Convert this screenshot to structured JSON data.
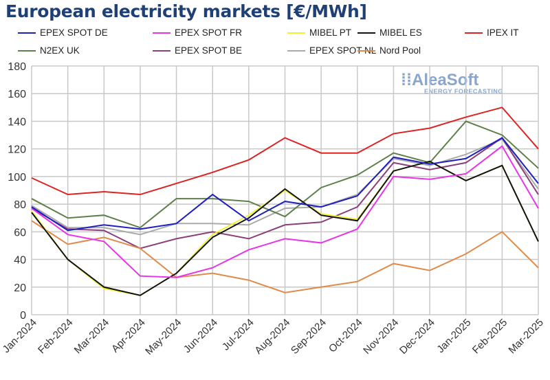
{
  "chart_data": {
    "type": "line",
    "title": "European electricity markets [€/MWh]",
    "categories": [
      "Jan-2024",
      "Feb-2024",
      "Mar-2024",
      "Apr-2024",
      "May-2024",
      "Jun-2024",
      "Jul-2024",
      "Aug-2024",
      "Sep-2024",
      "Oct-2024",
      "Nov-2024",
      "Dec-2024",
      "Jan-2025",
      "Feb-2025",
      "Mar-2025"
    ],
    "ylim": [
      0,
      180
    ],
    "yticks": [
      0,
      20,
      40,
      60,
      80,
      100,
      120,
      140,
      160,
      180
    ],
    "grid": true,
    "legend_position": "top",
    "series": [
      {
        "name": "EPEX SPOT DE",
        "color": "#1f1fbf",
        "values": [
          78,
          61,
          65,
          62,
          66,
          87,
          68,
          82,
          78,
          86,
          114,
          109,
          113,
          128,
          95
        ]
      },
      {
        "name": "EPEX SPOT FR",
        "color": "#e833e8",
        "values": [
          77,
          58,
          53,
          28,
          27,
          34,
          47,
          55,
          52,
          62,
          100,
          98,
          102,
          122,
          77
        ]
      },
      {
        "name": "MIBEL PT",
        "color": "#f2f230",
        "values": [
          75,
          40,
          19,
          14,
          30,
          58,
          72,
          90,
          73,
          69,
          104,
          111,
          97,
          108,
          53
        ]
      },
      {
        "name": "MIBEL ES",
        "color": "#111111",
        "values": [
          74,
          40,
          20,
          14,
          30,
          56,
          70,
          91,
          72,
          68,
          104,
          111,
          97,
          108,
          53
        ]
      },
      {
        "name": "IPEX IT",
        "color": "#dd2222",
        "values": [
          99,
          87,
          89,
          87,
          95,
          103,
          112,
          128,
          117,
          117,
          131,
          135,
          143,
          150,
          120
        ]
      },
      {
        "name": "N2EX UK",
        "color": "#5f7f4a",
        "values": [
          84,
          70,
          72,
          63,
          84,
          84,
          82,
          71,
          92,
          101,
          117,
          110,
          140,
          130,
          106
        ]
      },
      {
        "name": "EPEX SPOT BE",
        "color": "#8a3f7a",
        "values": [
          77,
          62,
          61,
          48,
          55,
          60,
          55,
          65,
          67,
          78,
          110,
          105,
          110,
          128,
          87
        ]
      },
      {
        "name": "EPEX SPOT NL",
        "color": "#aaaaaa",
        "values": [
          79,
          63,
          63,
          58,
          66,
          66,
          65,
          77,
          78,
          87,
          113,
          108,
          116,
          127,
          91
        ]
      },
      {
        "name": "Nord Pool",
        "color": "#e08a4a",
        "values": [
          68,
          51,
          56,
          48,
          27,
          30,
          25,
          16,
          20,
          24,
          37,
          32,
          44,
          60,
          34
        ]
      }
    ]
  },
  "logo": {
    "name": "AleaSoft",
    "tagline": "ENERGY FORECASTING"
  }
}
